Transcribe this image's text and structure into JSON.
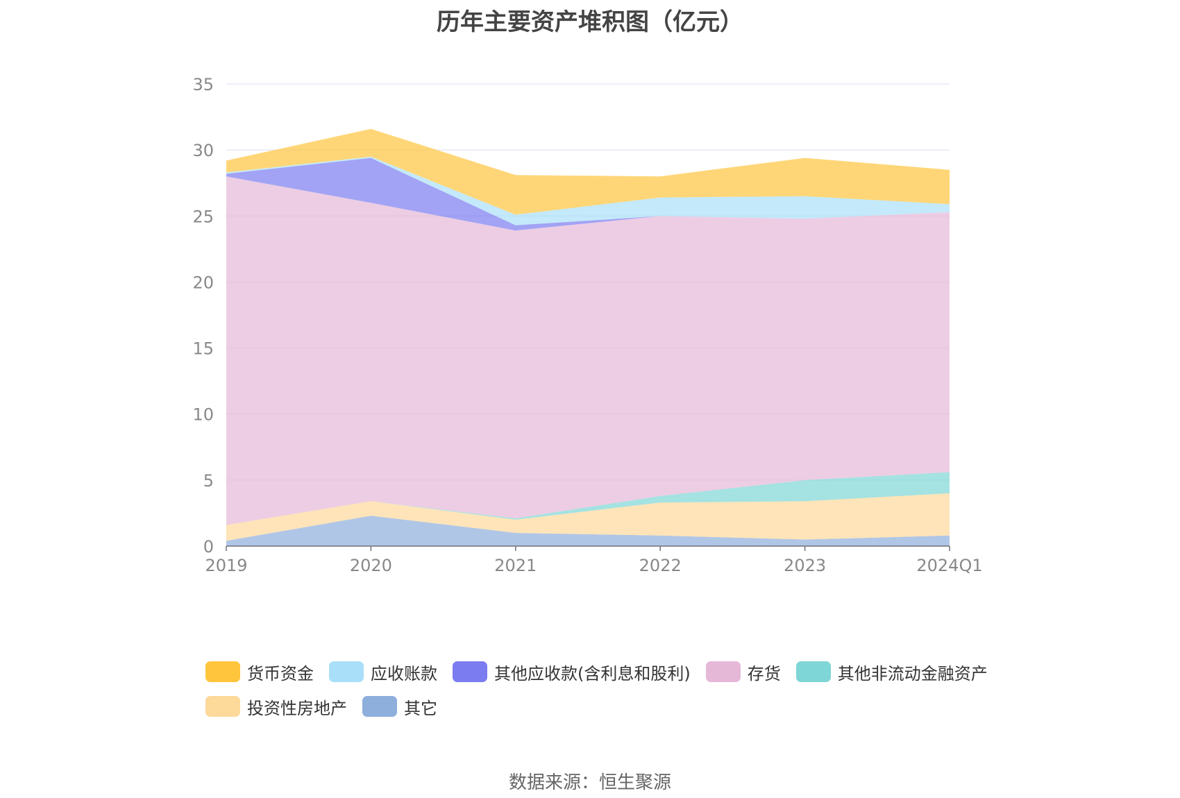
{
  "chart_data": {
    "type": "area",
    "stacked": true,
    "title": "历年主要资产堆积图（亿元）",
    "source": "数据来源：恒生聚源",
    "categories": [
      "2019",
      "2020",
      "2021",
      "2022",
      "2023",
      "2024Q1"
    ],
    "ylim": [
      0,
      35
    ],
    "yticks": [
      0,
      5,
      10,
      15,
      20,
      25,
      30,
      35
    ],
    "grid": true,
    "legend_position": "bottom",
    "series": [
      {
        "name": "其它",
        "color": "#8eaedc",
        "values": [
          0.4,
          2.3,
          1.0,
          0.8,
          0.5,
          0.8
        ]
      },
      {
        "name": "投资性房地产",
        "color": "#fdd99a",
        "values": [
          1.2,
          1.1,
          1.0,
          2.5,
          2.9,
          3.2
        ]
      },
      {
        "name": "其他非流动金融资产",
        "color": "#7fd6d6",
        "values": [
          0.0,
          0.0,
          0.1,
          0.5,
          1.6,
          1.6
        ]
      },
      {
        "name": "存货",
        "color": "#e6b8d8",
        "values": [
          26.4,
          22.6,
          21.8,
          21.2,
          19.8,
          19.7
        ]
      },
      {
        "name": "其他应收款(含利息和股利)",
        "color": "#7b7cf0",
        "values": [
          0.2,
          3.4,
          0.4,
          0.0,
          0.0,
          0.0
        ]
      },
      {
        "name": "应收账款",
        "color": "#a9dff8",
        "values": [
          0.1,
          0.1,
          0.8,
          1.4,
          1.7,
          0.6
        ]
      },
      {
        "name": "货币资金",
        "color": "#ffc53d",
        "values": [
          0.9,
          2.1,
          3.0,
          1.6,
          2.9,
          2.6
        ]
      }
    ],
    "legend_order": [
      "货币资金",
      "应收账款",
      "其他应收款(含利息和股利)",
      "存货",
      "其他非流动金融资产",
      "投资性房地产",
      "其它"
    ]
  }
}
